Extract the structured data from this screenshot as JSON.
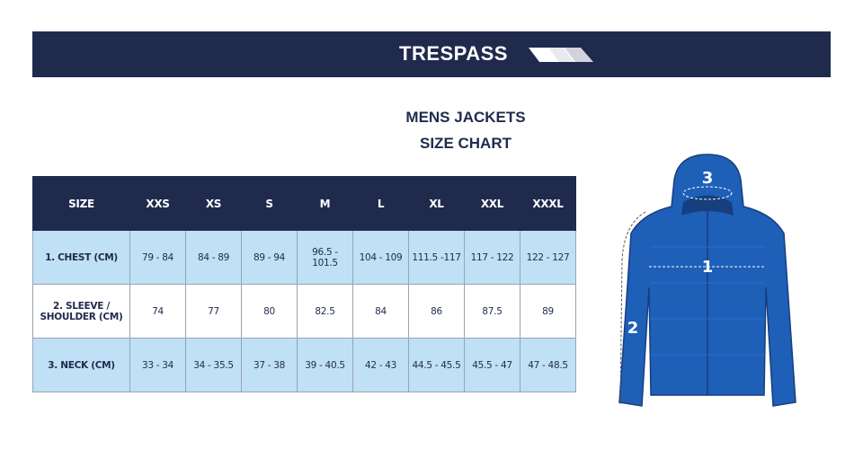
{
  "header": {
    "brand": "TRESPASS"
  },
  "title": {
    "line1": "MENS JACKETS",
    "line2": "SIZE CHART"
  },
  "table": {
    "columns": [
      "SIZE",
      "XXS",
      "XS",
      "S",
      "M",
      "L",
      "XL",
      "XXL",
      "XXXL"
    ],
    "rows": [
      [
        "1. CHEST (CM)",
        "79 - 84",
        "84 - 89",
        "89 - 94",
        "96.5 - 101.5",
        "104 - 109",
        "111.5 -117",
        "117 - 122",
        "122 - 127"
      ],
      [
        "2. SLEEVE / SHOULDER (CM)",
        74,
        77,
        80,
        82.5,
        84,
        86,
        87.5,
        89
      ],
      [
        "3. NECK (CM)",
        "33 - 34",
        "34 - 35.5",
        "37 - 38",
        "39 - 40.5",
        "42 - 43",
        "44.5 - 45.5",
        "45.5 - 47",
        "47 - 48.5"
      ]
    ]
  },
  "diagram": {
    "markers": [
      1,
      2,
      3
    ]
  }
}
